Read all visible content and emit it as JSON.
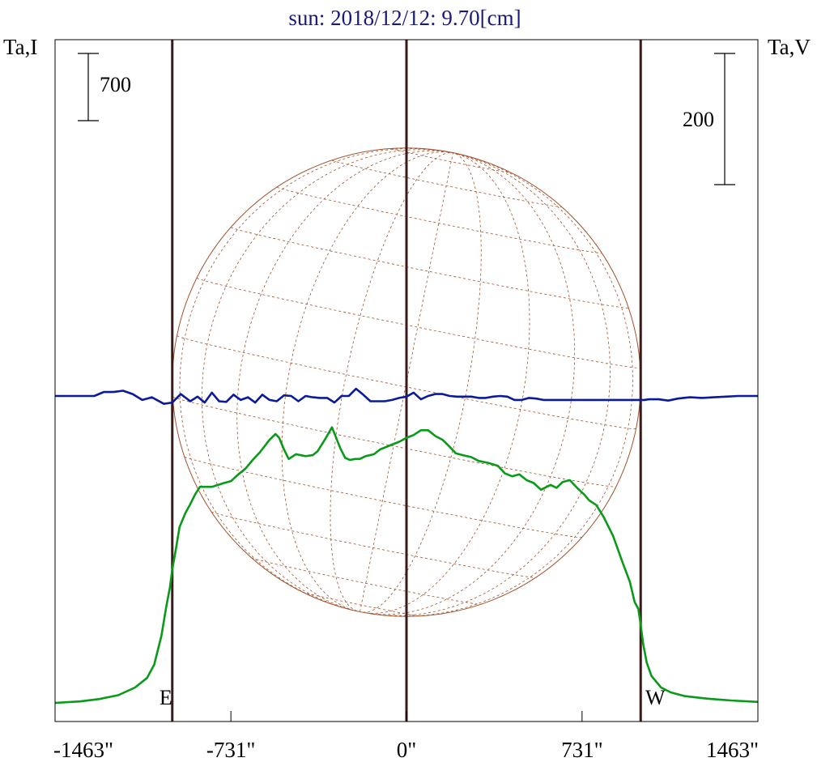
{
  "chart_data": {
    "type": "line",
    "title": "sun: 2018/12/12: 9.70[cm]",
    "ylabel_left": "Ta,I",
    "ylabel_right": "Ta,V",
    "xlim": [
      -1463,
      1463
    ],
    "x_ticks": [
      {
        "value": -1463,
        "label": "-1463\""
      },
      {
        "value": -731,
        "label": "-731\""
      },
      {
        "value": 0,
        "label": "0\""
      },
      {
        "value": 731,
        "label": "731\""
      },
      {
        "value": 1463,
        "label": "1463\""
      }
    ],
    "scale_bars": {
      "left": {
        "label": "700",
        "value": 700
      },
      "right": {
        "label": "200",
        "value": 200
      }
    },
    "limb_markers": [
      {
        "value": -975,
        "label": "E"
      },
      {
        "value": 0,
        "label": ""
      },
      {
        "value": 975,
        "label": "W"
      }
    ],
    "solar_disk_radius": 975,
    "colors": {
      "frame": "#000000",
      "title": "#1a1a7a",
      "intensity": "#0a9a1a",
      "polarization": "#0a1a9a",
      "markers": "#3a1a1a",
      "disk": "#a0522d"
    },
    "series": [
      {
        "name": "Ta,I",
        "axis": "left",
        "x": [
          -1463,
          -1360,
          -1280,
          -1200,
          -1130,
          -1080,
          -1050,
          -1020,
          -1000,
          -985,
          -975,
          -960,
          -945,
          -920,
          -900,
          -880,
          -860,
          -810,
          -760,
          -730,
          -700,
          -670,
          -640,
          -610,
          -570,
          -545,
          -530,
          -510,
          -490,
          -460,
          -420,
          -390,
          -370,
          -340,
          -310,
          -275,
          -255,
          -235,
          -215,
          -195,
          -170,
          -135,
          -110,
          -80,
          -60,
          -30,
          0,
          30,
          60,
          90,
          120,
          150,
          175,
          205,
          235,
          270,
          300,
          340,
          380,
          410,
          440,
          470,
          500,
          530,
          560,
          600,
          625,
          650,
          680,
          710,
          740,
          760,
          790,
          820,
          860,
          900,
          930,
          950,
          965,
          975,
          985,
          1000,
          1020,
          1060,
          1100,
          1160,
          1250,
          1350,
          1463
        ],
        "y": [
          0,
          15,
          40,
          80,
          160,
          260,
          400,
          700,
          1000,
          1200,
          1390,
          1600,
          1830,
          1980,
          2070,
          2170,
          2250,
          2250,
          2290,
          2310,
          2380,
          2440,
          2530,
          2610,
          2740,
          2800,
          2760,
          2640,
          2540,
          2590,
          2570,
          2580,
          2620,
          2740,
          2870,
          2650,
          2550,
          2530,
          2540,
          2540,
          2570,
          2590,
          2640,
          2670,
          2690,
          2720,
          2760,
          2790,
          2840,
          2840,
          2780,
          2740,
          2680,
          2600,
          2580,
          2560,
          2520,
          2500,
          2470,
          2390,
          2360,
          2380,
          2320,
          2290,
          2220,
          2270,
          2240,
          2300,
          2320,
          2240,
          2170,
          2110,
          2060,
          1940,
          1740,
          1460,
          1260,
          1050,
          980,
          820,
          620,
          420,
          280,
          160,
          110,
          70,
          45,
          25,
          10
        ]
      },
      {
        "name": "Ta,V",
        "axis": "right",
        "x": [
          -1463,
          -1380,
          -1330,
          -1300,
          -1260,
          -1220,
          -1180,
          -1140,
          -1100,
          -1060,
          -1010,
          -975,
          -940,
          -900,
          -870,
          -840,
          -810,
          -780,
          -750,
          -720,
          -690,
          -660,
          -630,
          -600,
          -570,
          -540,
          -510,
          -480,
          -450,
          -420,
          -390,
          -360,
          -330,
          -300,
          -270,
          -240,
          -210,
          -180,
          -150,
          -120,
          -90,
          -60,
          -30,
          0,
          30,
          60,
          90,
          120,
          150,
          180,
          210,
          240,
          270,
          300,
          330,
          360,
          390,
          420,
          450,
          480,
          510,
          540,
          570,
          600,
          630,
          660,
          690,
          720,
          750,
          780,
          810,
          840,
          870,
          900,
          930,
          960,
          990,
          1010,
          1050,
          1090,
          1130,
          1180,
          1230,
          1280,
          1330,
          1380,
          1463
        ],
        "y": [
          0,
          0,
          0,
          0,
          6,
          6,
          8,
          3,
          -6,
          -2,
          -12,
          -10,
          3,
          -8,
          -1,
          -10,
          5,
          -8,
          -9,
          2,
          -6,
          -2,
          -10,
          2,
          -6,
          -8,
          1,
          0,
          -8,
          0,
          -2,
          -3,
          -3,
          -10,
          0,
          0,
          11,
          2,
          -8,
          -8,
          -8,
          -6,
          -3,
          -1,
          5,
          -5,
          0,
          3,
          3,
          0,
          -1,
          -1,
          -1,
          -3,
          -3,
          -1,
          0,
          -1,
          -6,
          -6,
          -3,
          -4,
          -6,
          -6,
          -6,
          -6,
          -6,
          -6,
          -6,
          -6,
          -6,
          -6,
          -6,
          -6,
          -6,
          -6,
          -6,
          -5,
          -5,
          -7,
          -4,
          -2,
          -3,
          -2,
          -1,
          0,
          0
        ]
      }
    ]
  }
}
